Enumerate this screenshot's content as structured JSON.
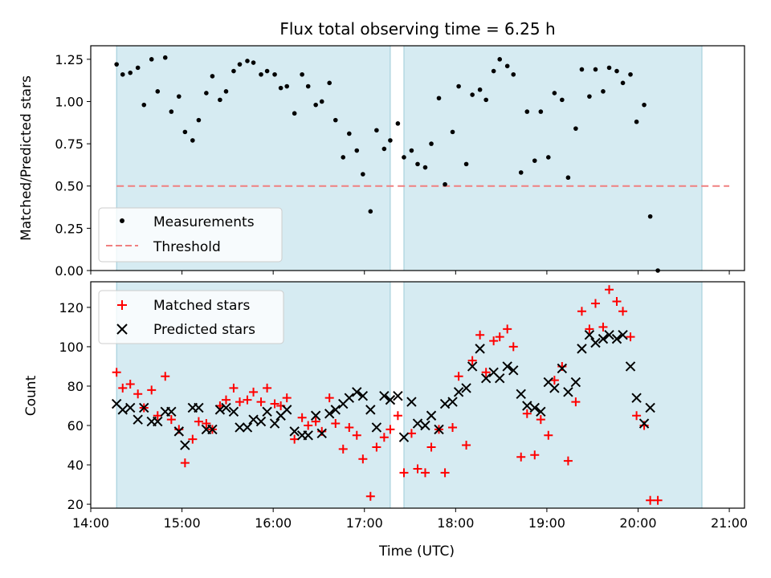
{
  "title": "Flux total observing time = 6.25 h",
  "chart_data": [
    {
      "type": "scatter",
      "panel": "top",
      "title": "Flux total observing time = 6.25 h",
      "ylabel": "Matched/Predicted stars",
      "xlim": [
        "14:00",
        "21:10"
      ],
      "ylim": [
        0,
        1.33
      ],
      "xticks": [
        "14:00",
        "15:00",
        "16:00",
        "17:00",
        "18:00",
        "19:00",
        "20:00",
        "21:00"
      ],
      "yticks": [
        "0.00",
        "0.25",
        "0.50",
        "0.75",
        "1.00",
        "1.25"
      ],
      "shaded_intervals": [
        [
          "14:17",
          "17:17"
        ],
        [
          "17:26",
          "20:42"
        ]
      ],
      "legend": "lower-left",
      "series": [
        {
          "name": "Measurements",
          "marker": "dot",
          "color": "#000000",
          "points": [
            [
              "14:17",
              1.22
            ],
            [
              "14:21",
              1.16
            ],
            [
              "14:26",
              1.17
            ],
            [
              "14:31",
              1.2
            ],
            [
              "14:35",
              0.98
            ],
            [
              "14:40",
              1.25
            ],
            [
              "14:44",
              1.06
            ],
            [
              "14:49",
              1.26
            ],
            [
              "14:53",
              0.94
            ],
            [
              "14:58",
              1.03
            ],
            [
              "15:02",
              0.82
            ],
            [
              "15:07",
              0.77
            ],
            [
              "15:11",
              0.89
            ],
            [
              "15:16",
              1.05
            ],
            [
              "15:20",
              1.15
            ],
            [
              "15:25",
              1.01
            ],
            [
              "15:29",
              1.06
            ],
            [
              "15:34",
              1.18
            ],
            [
              "15:38",
              1.22
            ],
            [
              "15:43",
              1.24
            ],
            [
              "15:47",
              1.23
            ],
            [
              "15:52",
              1.16
            ],
            [
              "15:56",
              1.18
            ],
            [
              "16:01",
              1.16
            ],
            [
              "16:05",
              1.08
            ],
            [
              "16:09",
              1.09
            ],
            [
              "16:14",
              0.93
            ],
            [
              "16:19",
              1.16
            ],
            [
              "16:23",
              1.09
            ],
            [
              "16:28",
              0.98
            ],
            [
              "16:32",
              1.0
            ],
            [
              "16:37",
              1.11
            ],
            [
              "16:41",
              0.89
            ],
            [
              "16:46",
              0.67
            ],
            [
              "16:50",
              0.81
            ],
            [
              "16:55",
              0.71
            ],
            [
              "16:59",
              0.57
            ],
            [
              "17:04",
              0.35
            ],
            [
              "17:08",
              0.83
            ],
            [
              "17:13",
              0.72
            ],
            [
              "17:17",
              0.77
            ],
            [
              "17:22",
              0.87
            ],
            [
              "17:26",
              0.67
            ],
            [
              "17:31",
              0.71
            ],
            [
              "17:35",
              0.63
            ],
            [
              "17:40",
              0.61
            ],
            [
              "17:44",
              0.75
            ],
            [
              "17:49",
              1.02
            ],
            [
              "17:53",
              0.51
            ],
            [
              "17:58",
              0.82
            ],
            [
              "18:02",
              1.09
            ],
            [
              "18:07",
              0.63
            ],
            [
              "18:11",
              1.04
            ],
            [
              "18:16",
              1.07
            ],
            [
              "18:20",
              1.01
            ],
            [
              "18:25",
              1.18
            ],
            [
              "18:29",
              1.25
            ],
            [
              "18:34",
              1.21
            ],
            [
              "18:38",
              1.16
            ],
            [
              "18:43",
              0.58
            ],
            [
              "18:47",
              0.94
            ],
            [
              "18:52",
              0.65
            ],
            [
              "18:56",
              0.94
            ],
            [
              "19:01",
              0.67
            ],
            [
              "19:05",
              1.05
            ],
            [
              "19:10",
              1.01
            ],
            [
              "19:14",
              0.55
            ],
            [
              "19:19",
              0.84
            ],
            [
              "19:23",
              1.19
            ],
            [
              "19:28",
              1.03
            ],
            [
              "19:32",
              1.19
            ],
            [
              "19:37",
              1.06
            ],
            [
              "19:41",
              1.2
            ],
            [
              "19:46",
              1.18
            ],
            [
              "19:50",
              1.11
            ],
            [
              "19:55",
              1.16
            ],
            [
              "19:59",
              0.88
            ],
            [
              "20:04",
              0.98
            ],
            [
              "20:08",
              0.32
            ],
            [
              "20:13",
              0.0
            ]
          ]
        },
        {
          "name": "Threshold",
          "type": "line",
          "style": "dashed",
          "color": "#f08080",
          "y": 0.5,
          "x_range": [
            "14:17",
            "21:00"
          ]
        }
      ]
    },
    {
      "type": "scatter",
      "panel": "bottom",
      "xlabel": "Time (UTC)",
      "ylabel": "Count",
      "xlim": [
        "14:00",
        "21:10"
      ],
      "ylim": [
        18,
        133
      ],
      "xticks": [
        "14:00",
        "15:00",
        "16:00",
        "17:00",
        "18:00",
        "19:00",
        "20:00",
        "21:00"
      ],
      "yticks": [
        "20",
        "40",
        "60",
        "80",
        "100",
        "120"
      ],
      "shaded_intervals": [
        [
          "14:17",
          "17:17"
        ],
        [
          "17:26",
          "20:42"
        ]
      ],
      "legend": "top-left",
      "series": [
        {
          "name": "Matched stars",
          "marker": "plus",
          "color": "#ff0000",
          "points": [
            [
              "14:17",
              87
            ],
            [
              "14:21",
              79
            ],
            [
              "14:26",
              81
            ],
            [
              "14:31",
              76
            ],
            [
              "14:35",
              69
            ],
            [
              "14:40",
              78
            ],
            [
              "14:44",
              65
            ],
            [
              "14:49",
              85
            ],
            [
              "14:53",
              63
            ],
            [
              "14:58",
              58
            ],
            [
              "15:02",
              41
            ],
            [
              "15:07",
              53
            ],
            [
              "15:11",
              62
            ],
            [
              "15:16",
              61
            ],
            [
              "15:20",
              58
            ],
            [
              "15:25",
              70
            ],
            [
              "15:29",
              73
            ],
            [
              "15:34",
              79
            ],
            [
              "15:38",
              72
            ],
            [
              "15:43",
              73
            ],
            [
              "15:47",
              77
            ],
            [
              "15:52",
              72
            ],
            [
              "15:56",
              79
            ],
            [
              "16:01",
              71
            ],
            [
              "16:05",
              70
            ],
            [
              "16:09",
              74
            ],
            [
              "16:14",
              53
            ],
            [
              "16:19",
              64
            ],
            [
              "16:23",
              60
            ],
            [
              "16:28",
              62
            ],
            [
              "16:32",
              57
            ],
            [
              "16:37",
              74
            ],
            [
              "16:41",
              61
            ],
            [
              "16:46",
              48
            ],
            [
              "16:50",
              59
            ],
            [
              "16:55",
              55
            ],
            [
              "16:59",
              43
            ],
            [
              "17:04",
              24
            ],
            [
              "17:08",
              49
            ],
            [
              "17:13",
              54
            ],
            [
              "17:17",
              58
            ],
            [
              "17:22",
              65
            ],
            [
              "17:26",
              36
            ],
            [
              "17:31",
              56
            ],
            [
              "17:35",
              38
            ],
            [
              "17:40",
              36
            ],
            [
              "17:44",
              49
            ],
            [
              "17:49",
              58
            ],
            [
              "17:53",
              36
            ],
            [
              "17:58",
              59
            ],
            [
              "18:02",
              85
            ],
            [
              "18:07",
              50
            ],
            [
              "18:11",
              93
            ],
            [
              "18:16",
              106
            ],
            [
              "18:20",
              87
            ],
            [
              "18:25",
              103
            ],
            [
              "18:29",
              105
            ],
            [
              "18:34",
              109
            ],
            [
              "18:38",
              100
            ],
            [
              "18:43",
              44
            ],
            [
              "18:47",
              66
            ],
            [
              "18:52",
              45
            ],
            [
              "18:56",
              63
            ],
            [
              "19:01",
              55
            ],
            [
              "19:05",
              83
            ],
            [
              "19:10",
              90
            ],
            [
              "19:14",
              42
            ],
            [
              "19:19",
              72
            ],
            [
              "19:23",
              118
            ],
            [
              "19:28",
              109
            ],
            [
              "19:32",
              122
            ],
            [
              "19:37",
              110
            ],
            [
              "19:41",
              129
            ],
            [
              "19:46",
              123
            ],
            [
              "19:50",
              118
            ],
            [
              "19:55",
              105
            ],
            [
              "19:59",
              65
            ],
            [
              "20:04",
              60
            ],
            [
              "20:08",
              22
            ],
            [
              "20:13",
              22
            ]
          ]
        },
        {
          "name": "Predicted stars",
          "marker": "x",
          "color": "#000000",
          "points": [
            [
              "14:17",
              71
            ],
            [
              "14:21",
              68
            ],
            [
              "14:26",
              69
            ],
            [
              "14:31",
              63
            ],
            [
              "14:35",
              69
            ],
            [
              "14:40",
              62
            ],
            [
              "14:44",
              62
            ],
            [
              "14:49",
              67
            ],
            [
              "14:53",
              67
            ],
            [
              "14:58",
              57
            ],
            [
              "15:02",
              50
            ],
            [
              "15:07",
              69
            ],
            [
              "15:11",
              69
            ],
            [
              "15:16",
              58
            ],
            [
              "15:20",
              58
            ],
            [
              "15:25",
              68
            ],
            [
              "15:29",
              69
            ],
            [
              "15:34",
              67
            ],
            [
              "15:38",
              59
            ],
            [
              "15:43",
              59
            ],
            [
              "15:47",
              63
            ],
            [
              "15:52",
              62
            ],
            [
              "15:56",
              67
            ],
            [
              "16:01",
              61
            ],
            [
              "16:05",
              65
            ],
            [
              "16:09",
              68
            ],
            [
              "16:14",
              57
            ],
            [
              "16:19",
              55
            ],
            [
              "16:23",
              55
            ],
            [
              "16:28",
              65
            ],
            [
              "16:32",
              56
            ],
            [
              "16:37",
              66
            ],
            [
              "16:41",
              68
            ],
            [
              "16:46",
              71
            ],
            [
              "16:50",
              74
            ],
            [
              "16:55",
              77
            ],
            [
              "16:59",
              75
            ],
            [
              "17:04",
              68
            ],
            [
              "17:08",
              59
            ],
            [
              "17:13",
              75
            ],
            [
              "17:17",
              73
            ],
            [
              "17:22",
              75
            ],
            [
              "17:26",
              54
            ],
            [
              "17:31",
              72
            ],
            [
              "17:35",
              61
            ],
            [
              "17:40",
              60
            ],
            [
              "17:44",
              65
            ],
            [
              "17:49",
              58
            ],
            [
              "17:53",
              71
            ],
            [
              "17:58",
              72
            ],
            [
              "18:02",
              77
            ],
            [
              "18:07",
              79
            ],
            [
              "18:11",
              90
            ],
            [
              "18:16",
              99
            ],
            [
              "18:20",
              84
            ],
            [
              "18:25",
              87
            ],
            [
              "18:29",
              84
            ],
            [
              "18:34",
              90
            ],
            [
              "18:38",
              88
            ],
            [
              "18:43",
              76
            ],
            [
              "18:47",
              70
            ],
            [
              "18:52",
              69
            ],
            [
              "18:56",
              67
            ],
            [
              "19:01",
              82
            ],
            [
              "19:05",
              79
            ],
            [
              "19:10",
              89
            ],
            [
              "19:14",
              77
            ],
            [
              "19:19",
              82
            ],
            [
              "19:23",
              99
            ],
            [
              "19:28",
              106
            ],
            [
              "19:32",
              102
            ],
            [
              "19:37",
              104
            ],
            [
              "19:41",
              106
            ],
            [
              "19:46",
              104
            ],
            [
              "19:50",
              106
            ],
            [
              "19:55",
              90
            ],
            [
              "19:59",
              74
            ],
            [
              "20:04",
              61
            ],
            [
              "20:08",
              69
            ]
          ]
        }
      ]
    }
  ]
}
